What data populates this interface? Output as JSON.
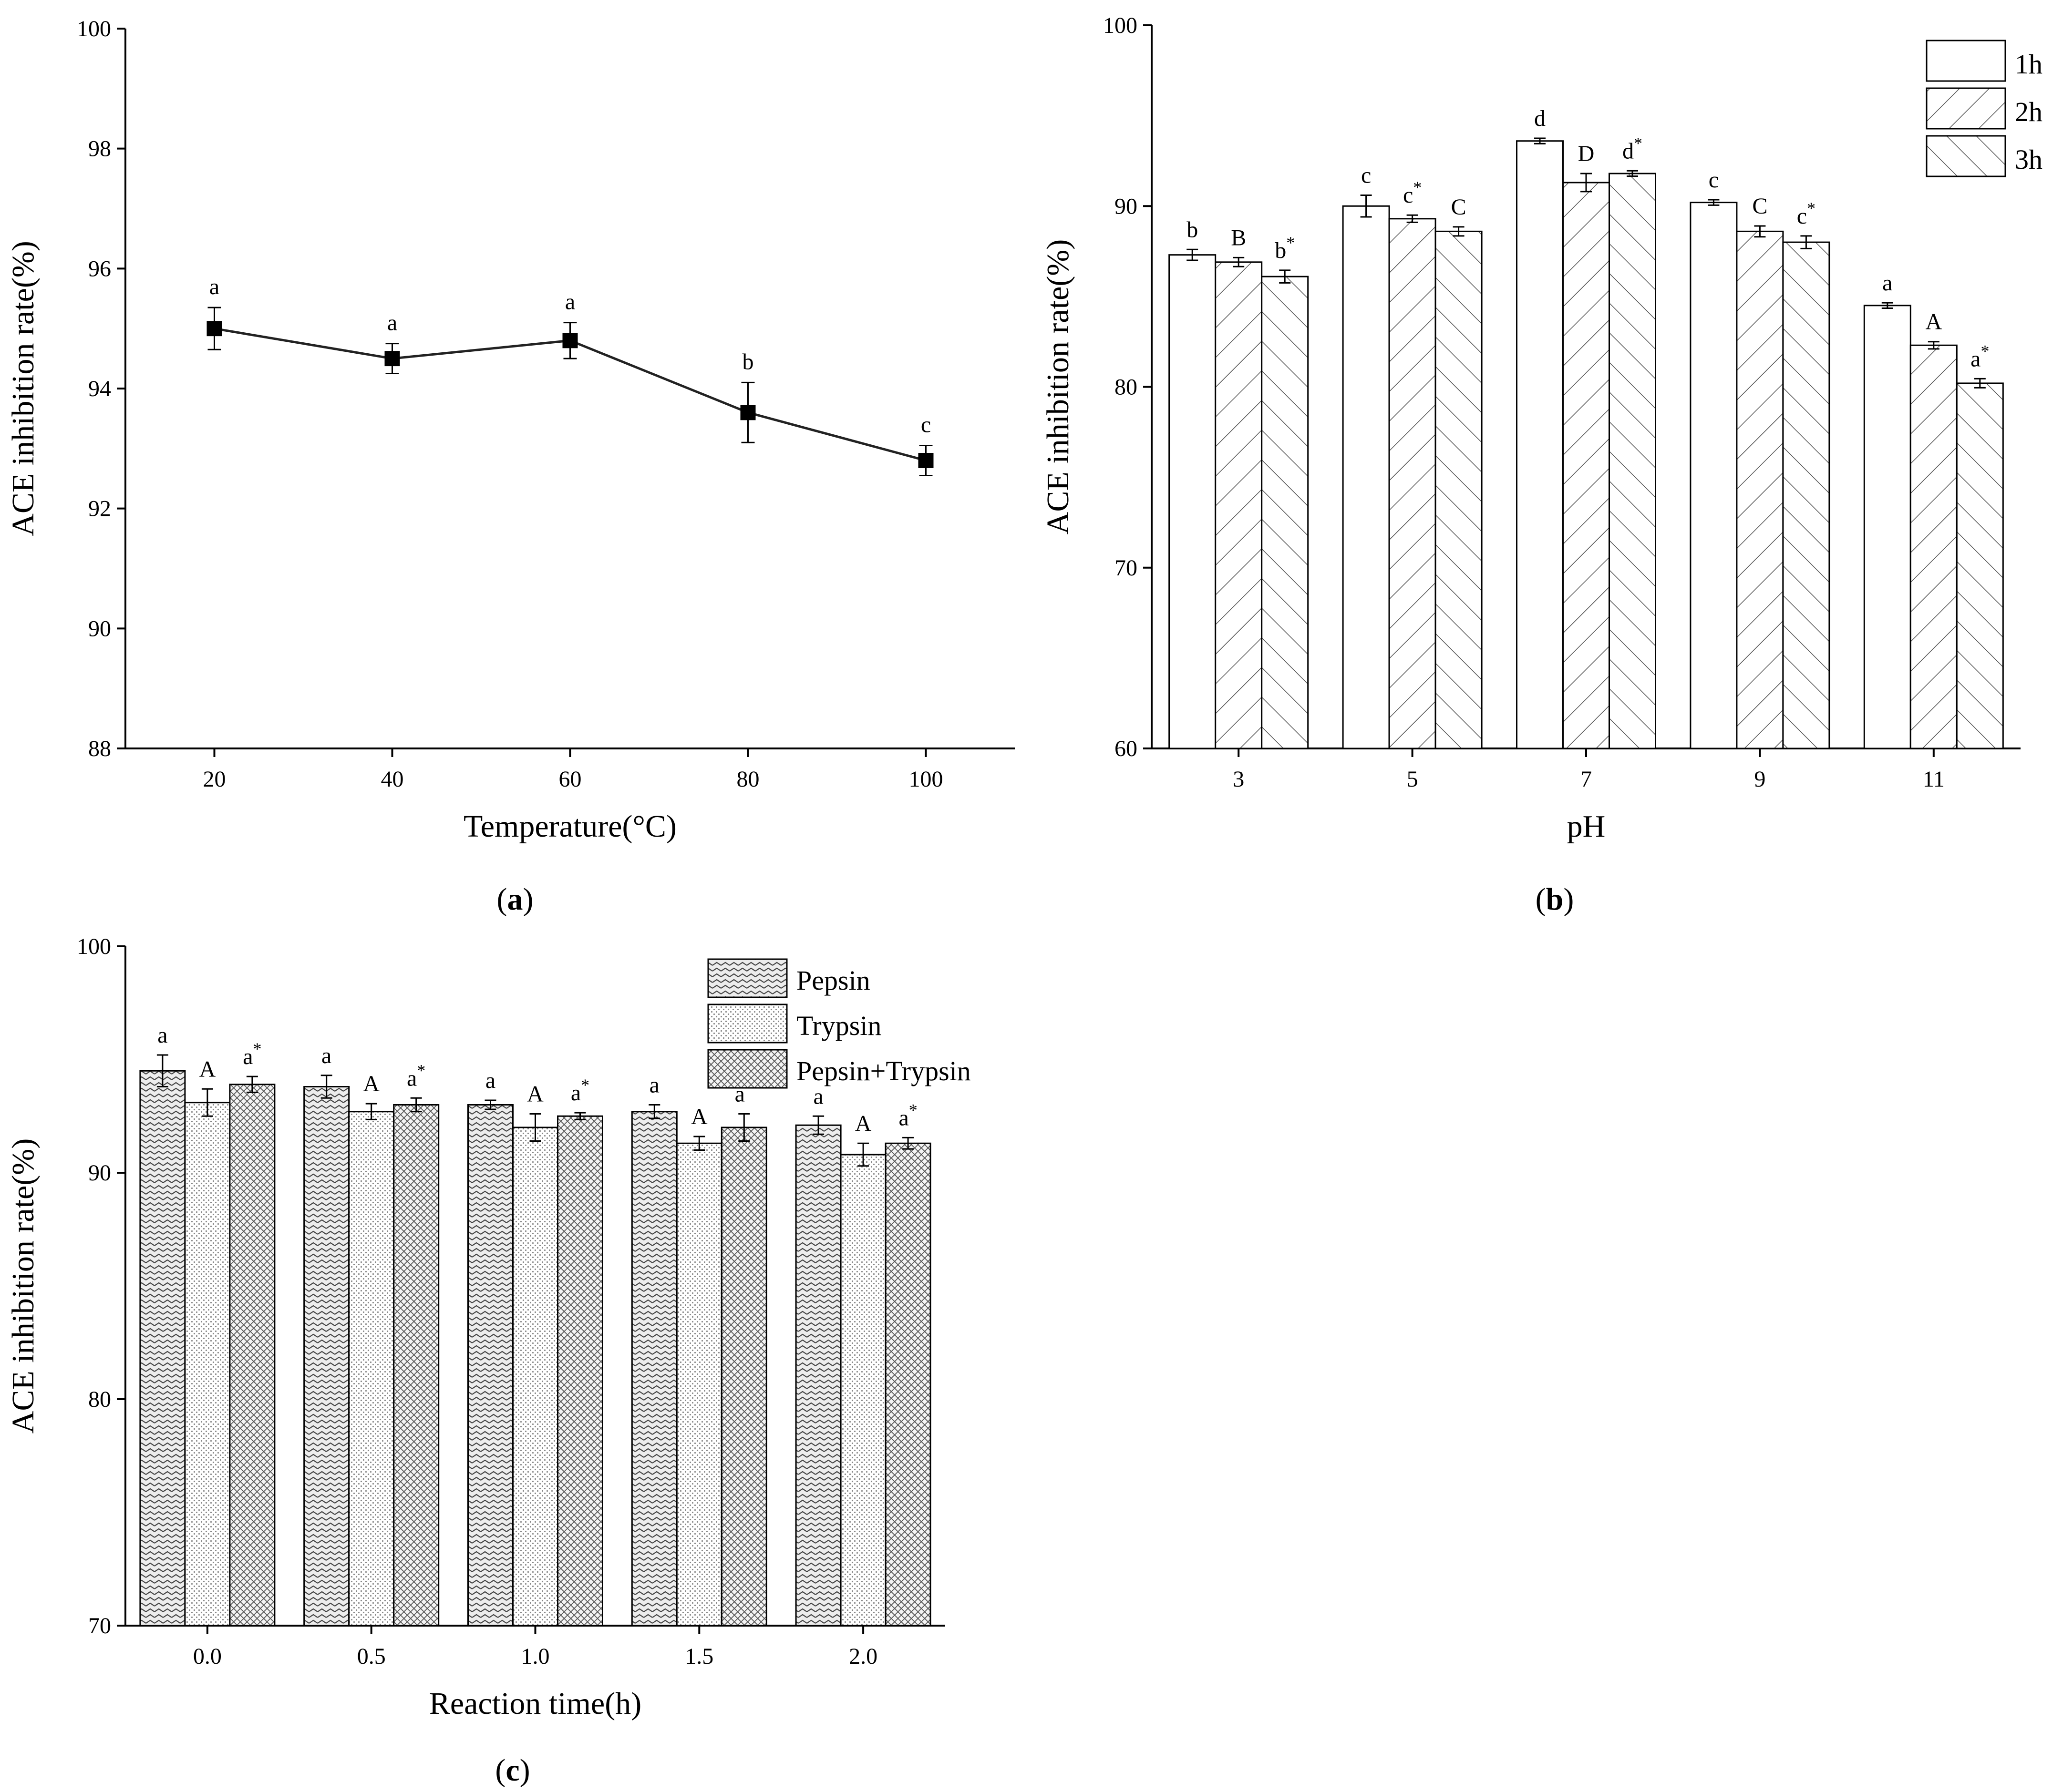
{
  "chart_data": [
    {
      "panel": "a",
      "type": "line",
      "x": [
        20,
        40,
        60,
        80,
        100
      ],
      "y": [
        95.0,
        94.5,
        94.8,
        93.6,
        92.8
      ],
      "error": [
        0.35,
        0.25,
        0.3,
        0.5,
        0.25
      ],
      "letters": [
        "a",
        "a",
        "a",
        "b",
        "c"
      ],
      "xlabel": "Temperature(°C)",
      "ylabel": "ACE inhibition rate(%)",
      "xticks": [
        "20",
        "40",
        "60",
        "80",
        "100"
      ],
      "yticks": [
        "88",
        "90",
        "92",
        "94",
        "96",
        "98",
        "100"
      ],
      "ylim": [
        88,
        100
      ],
      "xlim": [
        10,
        110
      ],
      "caption_paren_open": "(",
      "caption_letter": "a",
      "caption_paren_close": ")"
    },
    {
      "panel": "b",
      "type": "bar",
      "categories": [
        "3",
        "5",
        "7",
        "9",
        "11"
      ],
      "series": [
        {
          "name": "1h",
          "values": [
            87.3,
            90.0,
            93.6,
            90.2,
            84.5
          ],
          "error": [
            0.3,
            0.6,
            0.15,
            0.15,
            0.15
          ],
          "letters": [
            "b",
            "c",
            "d",
            "c",
            "a"
          ],
          "star": [
            false,
            false,
            false,
            false,
            false
          ],
          "pattern": "none"
        },
        {
          "name": "2h",
          "values": [
            86.9,
            89.3,
            91.3,
            88.6,
            82.3
          ],
          "error": [
            0.25,
            0.2,
            0.5,
            0.3,
            0.2
          ],
          "letters": [
            "B",
            "c",
            "D",
            "C",
            "A"
          ],
          "star": [
            false,
            true,
            false,
            false,
            false
          ],
          "pattern": "forward-diagonal"
        },
        {
          "name": "3h",
          "values": [
            86.1,
            88.6,
            91.8,
            88.0,
            80.2
          ],
          "error": [
            0.35,
            0.25,
            0.15,
            0.35,
            0.25
          ],
          "letters": [
            "b",
            "C",
            "d",
            "c",
            "a"
          ],
          "star": [
            true,
            false,
            true,
            true,
            true
          ],
          "pattern": "backward-diagonal"
        }
      ],
      "xlabel": "pH",
      "ylabel": "ACE inhibition rate(%)",
      "yticks": [
        "60",
        "70",
        "80",
        "90",
        "100"
      ],
      "ylim": [
        60,
        100
      ],
      "star_symbol": "*",
      "legend_position": "top-right",
      "caption_paren_open": "(",
      "caption_letter": "b",
      "caption_paren_close": ")"
    },
    {
      "panel": "c",
      "type": "bar",
      "categories": [
        "0.0",
        "0.5",
        "1.0",
        "1.5",
        "2.0"
      ],
      "series": [
        {
          "name": "Pepsin",
          "values": [
            94.5,
            93.8,
            93.0,
            92.7,
            92.1
          ],
          "error": [
            0.7,
            0.5,
            0.2,
            0.3,
            0.4
          ],
          "letters": [
            "a",
            "a",
            "a",
            "a",
            "a"
          ],
          "star": [
            false,
            false,
            false,
            false,
            false
          ],
          "pattern": "zigzag"
        },
        {
          "name": "Trypsin",
          "values": [
            93.1,
            92.7,
            92.0,
            91.3,
            90.8
          ],
          "error": [
            0.6,
            0.35,
            0.6,
            0.3,
            0.5
          ],
          "letters": [
            "A",
            "A",
            "A",
            "A",
            "A"
          ],
          "star": [
            false,
            false,
            false,
            false,
            false
          ],
          "pattern": "dots"
        },
        {
          "name": "Pepsin+Trypsin",
          "values": [
            93.9,
            93.0,
            92.5,
            92.0,
            91.3
          ],
          "error": [
            0.35,
            0.3,
            0.15,
            0.6,
            0.25
          ],
          "letters": [
            "a",
            "a",
            "a",
            "a",
            "a"
          ],
          "star": [
            true,
            true,
            true,
            true,
            true
          ],
          "pattern": "crosshatch"
        }
      ],
      "xlabel": "Reaction time(h)",
      "ylabel": "ACE inhibition rate(%)",
      "yticks": [
        "70",
        "80",
        "90",
        "100"
      ],
      "ylim": [
        70,
        100
      ],
      "star_symbol": "*",
      "legend_position": "top-right",
      "caption_paren_open": "(",
      "caption_letter": "c",
      "caption_paren_close": ")"
    }
  ]
}
